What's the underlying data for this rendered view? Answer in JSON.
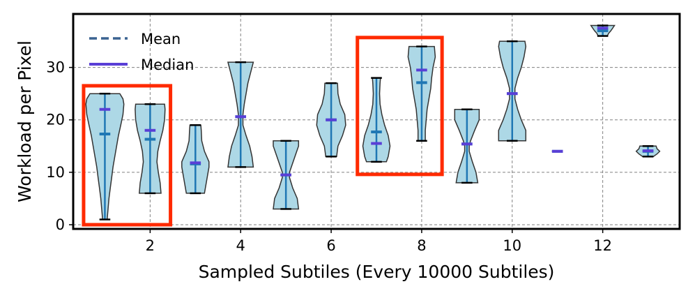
{
  "chart_data": {
    "type": "violin",
    "xlabel": "Sampled Subtiles (Every 10000 Subtiles)",
    "ylabel": "Workload per Pixel",
    "xlim": [
      0.3,
      13.7
    ],
    "ylim": [
      -0.8,
      40.2
    ],
    "xticks": [
      2,
      4,
      6,
      8,
      10,
      12
    ],
    "yticks": [
      0,
      10,
      20,
      30
    ],
    "grid": true,
    "legend": {
      "placement": "top-left",
      "entries": [
        {
          "label": "Mean",
          "style": "dashed",
          "color": "#3b6391"
        },
        {
          "label": "Median",
          "style": "solid",
          "color": "#5a3fd6"
        }
      ]
    },
    "colors": {
      "violin_fill": "#add8e6",
      "violin_edge": "#333333",
      "stem": "#1f77b4",
      "mean": "#1f77b4",
      "median": "#5a3fd6",
      "extrema": "#000000",
      "highlight": "#ff2a00",
      "grid": "#808080"
    },
    "violins": [
      {
        "x": 1,
        "min": 1,
        "max": 25,
        "mean": 17.3,
        "median": 22.0,
        "profile": [
          [
            1,
            0.05
          ],
          [
            3,
            0.07
          ],
          [
            5,
            0.09
          ],
          [
            7,
            0.12
          ],
          [
            9,
            0.15
          ],
          [
            11,
            0.18
          ],
          [
            13,
            0.22
          ],
          [
            15,
            0.26
          ],
          [
            17,
            0.3
          ],
          [
            19,
            0.35
          ],
          [
            21,
            0.4
          ],
          [
            23,
            0.42
          ],
          [
            24,
            0.4
          ],
          [
            25,
            0.33
          ]
        ]
      },
      {
        "x": 2,
        "min": 6,
        "max": 23,
        "mean": 16.3,
        "median": 18.0,
        "profile": [
          [
            6,
            0.24
          ],
          [
            8,
            0.22
          ],
          [
            10,
            0.18
          ],
          [
            12,
            0.15
          ],
          [
            14,
            0.17
          ],
          [
            16,
            0.22
          ],
          [
            18,
            0.28
          ],
          [
            20,
            0.32
          ],
          [
            22,
            0.33
          ],
          [
            23,
            0.32
          ]
        ]
      },
      {
        "x": 3,
        "min": 6,
        "max": 19,
        "mean": 11.6,
        "median": 11.8,
        "profile": [
          [
            6,
            0.2
          ],
          [
            7,
            0.22
          ],
          [
            9,
            0.26
          ],
          [
            11,
            0.3
          ],
          [
            12,
            0.3
          ],
          [
            14,
            0.2
          ],
          [
            16,
            0.14
          ],
          [
            18,
            0.13
          ],
          [
            19,
            0.12
          ]
        ]
      },
      {
        "x": 4,
        "min": 11,
        "max": 31,
        "mean": 20.6,
        "median": 20.6,
        "profile": [
          [
            11,
            0.28
          ],
          [
            13,
            0.25
          ],
          [
            15,
            0.2
          ],
          [
            17,
            0.12
          ],
          [
            19,
            0.05
          ],
          [
            21,
            0.05
          ],
          [
            23,
            0.08
          ],
          [
            25,
            0.12
          ],
          [
            27,
            0.16
          ],
          [
            29,
            0.22
          ],
          [
            31,
            0.28
          ]
        ]
      },
      {
        "x": 5,
        "min": 3,
        "max": 16,
        "mean": 9.5,
        "median": 9.5,
        "profile": [
          [
            3,
            0.28
          ],
          [
            5,
            0.25
          ],
          [
            7,
            0.15
          ],
          [
            9,
            0.08
          ],
          [
            10,
            0.08
          ],
          [
            11,
            0.12
          ],
          [
            13,
            0.2
          ],
          [
            15,
            0.28
          ],
          [
            16,
            0.28
          ]
        ]
      },
      {
        "x": 6,
        "min": 13,
        "max": 27,
        "mean": 20.0,
        "median": 20.0,
        "profile": [
          [
            13,
            0.12
          ],
          [
            15,
            0.15
          ],
          [
            17,
            0.25
          ],
          [
            19,
            0.32
          ],
          [
            21,
            0.3
          ],
          [
            23,
            0.2
          ],
          [
            25,
            0.15
          ],
          [
            27,
            0.14
          ]
        ]
      },
      {
        "x": 7,
        "min": 12,
        "max": 28,
        "mean": 17.7,
        "median": 15.5,
        "profile": [
          [
            12,
            0.22
          ],
          [
            13,
            0.26
          ],
          [
            15,
            0.3
          ],
          [
            17,
            0.26
          ],
          [
            19,
            0.18
          ],
          [
            21,
            0.12
          ],
          [
            23,
            0.08
          ],
          [
            25,
            0.07
          ],
          [
            27,
            0.08
          ],
          [
            28,
            0.09
          ]
        ]
      },
      {
        "x": 8,
        "min": 16,
        "max": 34,
        "mean": 27.1,
        "median": 29.5,
        "profile": [
          [
            16,
            0.08
          ],
          [
            18,
            0.08
          ],
          [
            20,
            0.1
          ],
          [
            22,
            0.12
          ],
          [
            24,
            0.16
          ],
          [
            26,
            0.2
          ],
          [
            28,
            0.22
          ],
          [
            30,
            0.25
          ],
          [
            32,
            0.3
          ],
          [
            34,
            0.28
          ]
        ]
      },
      {
        "x": 9,
        "min": 8,
        "max": 22,
        "mean": 15.4,
        "median": 15.4,
        "profile": [
          [
            8,
            0.24
          ],
          [
            10,
            0.2
          ],
          [
            12,
            0.12
          ],
          [
            14,
            0.05
          ],
          [
            15,
            0.05
          ],
          [
            16,
            0.08
          ],
          [
            18,
            0.17
          ],
          [
            20,
            0.27
          ],
          [
            22,
            0.27
          ]
        ]
      },
      {
        "x": 10,
        "min": 16,
        "max": 35,
        "mean": 25.0,
        "median": 25.0,
        "profile": [
          [
            16,
            0.3
          ],
          [
            18,
            0.3
          ],
          [
            20,
            0.2
          ],
          [
            22,
            0.12
          ],
          [
            24,
            0.06
          ],
          [
            26,
            0.06
          ],
          [
            28,
            0.12
          ],
          [
            30,
            0.2
          ],
          [
            32,
            0.26
          ],
          [
            34,
            0.3
          ],
          [
            35,
            0.28
          ]
        ]
      },
      {
        "x": 11,
        "min": 14,
        "max": 14,
        "mean": 14.0,
        "median": 14.0,
        "profile": []
      },
      {
        "x": 12,
        "min": 36,
        "max": 38,
        "mean": 37.0,
        "median": 37.5,
        "profile": [
          [
            36,
            0.1
          ],
          [
            36.5,
            0.13
          ],
          [
            37,
            0.18
          ],
          [
            37.5,
            0.22
          ],
          [
            38,
            0.26
          ]
        ]
      },
      {
        "x": 13,
        "min": 13,
        "max": 15,
        "mean": 14.0,
        "median": 14.1,
        "profile": [
          [
            13,
            0.12
          ],
          [
            13.5,
            0.2
          ],
          [
            14,
            0.26
          ],
          [
            14.5,
            0.2
          ],
          [
            15,
            0.18
          ]
        ]
      }
    ],
    "highlight_boxes": [
      {
        "x0": 0.53,
        "x1": 2.45,
        "y0": 0,
        "y1": 26.5
      },
      {
        "x0": 6.58,
        "x1": 8.45,
        "y0": 9.6,
        "y1": 35.7
      }
    ]
  }
}
